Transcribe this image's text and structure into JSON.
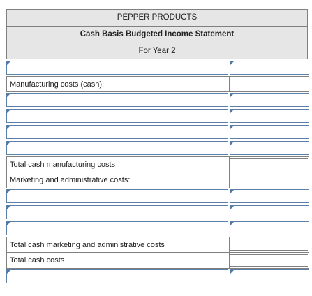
{
  "header": {
    "company": "PEPPER PRODUCTS",
    "title": "Cash Basis Budgeted Income Statement",
    "period": "For Year 2"
  },
  "labels": [
    "Manufacturing costs (cash):",
    "Total cash manufacturing costs",
    "Marketing and administrative costs:",
    "Total cash marketing and administrative costs",
    "Total cash costs"
  ]
}
